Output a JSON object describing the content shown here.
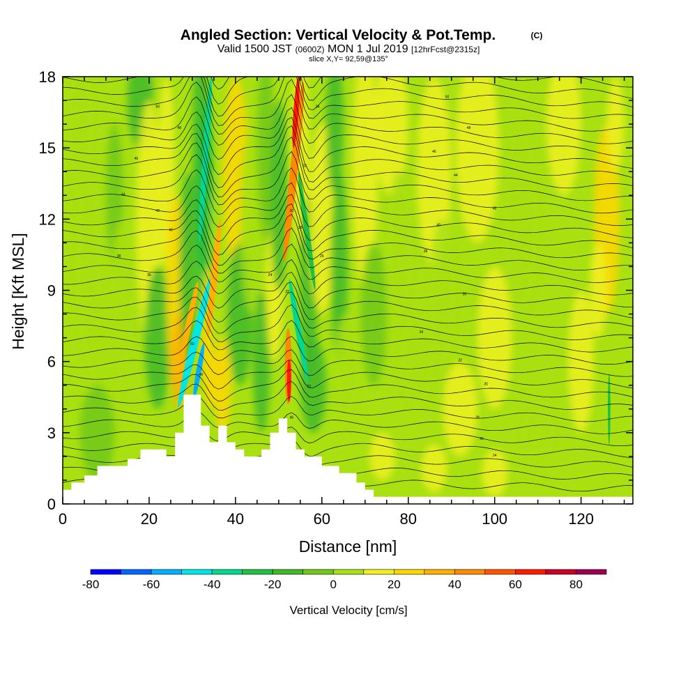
{
  "title_main": "Angled Section: Vertical Velocity & Pot.Temp.",
  "title_c": "(C)",
  "subtitle_a": "Valid 1500 JST",
  "subtitle_b": "(0600Z)",
  "subtitle_c": "MON 1 Jul 2019",
  "subtitle_d": "[12hrFcst@2315z]",
  "slice": "slice X,Y= 92,59@135°",
  "chart_data": {
    "type": "heatmap",
    "title": "Angled Section: Vertical Velocity & Pot.Temp.",
    "xlabel": "Distance [nm]",
    "ylabel": "Height [Kft MSL]",
    "xlim": [
      0,
      132
    ],
    "ylim": [
      0,
      18
    ],
    "x_ticks": [
      "0",
      "20",
      "40",
      "60",
      "80",
      "100",
      "120"
    ],
    "y_ticks": [
      "0",
      "3",
      "6",
      "9",
      "12",
      "15",
      "18"
    ],
    "colorbar": {
      "title": "Vertical Velocity [cm/s]",
      "levels": [
        -80,
        -70,
        -60,
        -50,
        -40,
        -30,
        -20,
        -10,
        0,
        10,
        20,
        30,
        40,
        50,
        60,
        70,
        80,
        90
      ],
      "colors": [
        "#0000ff",
        "#0066ff",
        "#00b0ff",
        "#00e5e5",
        "#00d890",
        "#20c040",
        "#40b82a",
        "#70c818",
        "#a8e010",
        "#f0f020",
        "#ffd700",
        "#ffb000",
        "#ff8a00",
        "#ff5500",
        "#ff1a00",
        "#cc0020",
        "#a00050",
        "#7000a0"
      ],
      "tick_labels": [
        "-80",
        "-60",
        "-40",
        "-20",
        "0",
        "20",
        "40",
        "60",
        "80"
      ],
      "tick_values": [
        -80,
        -60,
        -40,
        -20,
        0,
        20,
        40,
        60,
        80
      ]
    },
    "terrain_kft": [
      [
        0,
        0.6
      ],
      [
        2,
        0.9
      ],
      [
        5,
        1.2
      ],
      [
        8,
        1.6
      ],
      [
        12,
        1.6
      ],
      [
        15,
        1.9
      ],
      [
        18,
        2.3
      ],
      [
        22,
        2.3
      ],
      [
        24,
        2.0
      ],
      [
        26,
        3.0
      ],
      [
        28,
        4.6
      ],
      [
        31,
        4.6
      ],
      [
        32,
        3.3
      ],
      [
        34,
        2.6
      ],
      [
        36,
        3.3
      ],
      [
        38,
        2.6
      ],
      [
        40,
        2.3
      ],
      [
        42,
        2.0
      ],
      [
        46,
        2.3
      ],
      [
        48,
        3.0
      ],
      [
        50,
        3.6
      ],
      [
        52,
        3.0
      ],
      [
        54,
        2.3
      ],
      [
        56,
        2.0
      ],
      [
        60,
        1.6
      ],
      [
        64,
        1.3
      ],
      [
        68,
        0.9
      ],
      [
        70,
        0.6
      ],
      [
        72,
        0.3
      ],
      [
        132,
        0.3
      ]
    ],
    "pot_temp_labels": [
      "50",
      "48",
      "46",
      "44",
      "42",
      "40",
      "38",
      "36",
      "34",
      "32",
      "30",
      "28",
      "26",
      "24",
      "22"
    ]
  }
}
